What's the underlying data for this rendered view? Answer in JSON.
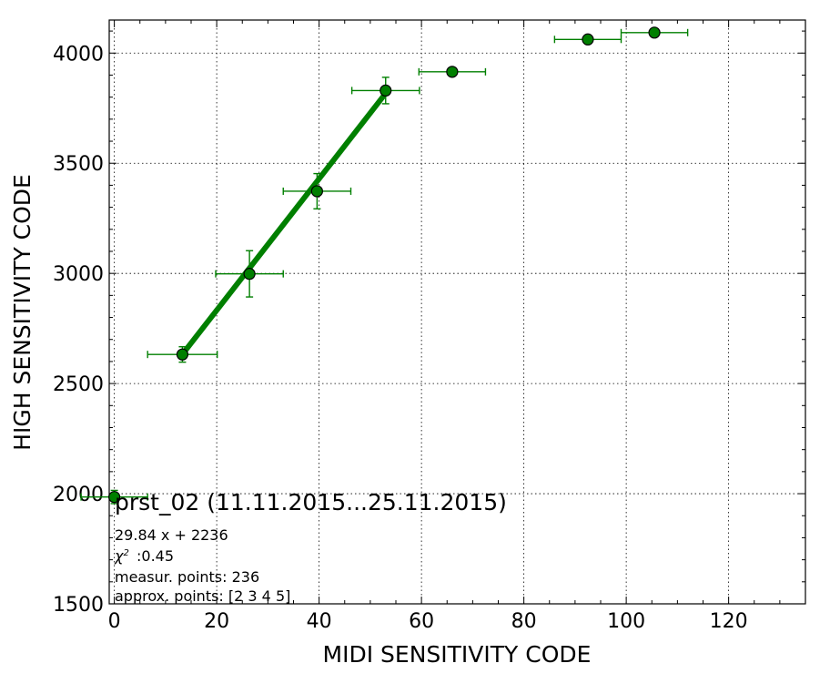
{
  "chart_data": {
    "type": "scatter",
    "title": "",
    "xlabel": "MIDI SENSITIVITY CODE",
    "ylabel": "HIGH SENSITIVITY CODE",
    "xlim": [
      -1,
      135
    ],
    "ylim": [
      1500,
      4150
    ],
    "xticks": [
      0,
      20,
      40,
      60,
      80,
      100,
      120
    ],
    "yticks": [
      1500,
      2000,
      2500,
      3000,
      3500,
      4000
    ],
    "grid": true,
    "colors": {
      "marker": "#007f00",
      "fit_line": "#007f00",
      "errorbar": "#007f00"
    },
    "points": [
      {
        "x": 0,
        "y": 1985,
        "xerr": 6.5,
        "yerr": 30
      },
      {
        "x": 13.3,
        "y": 2632,
        "xerr": 6.8,
        "yerr": 35
      },
      {
        "x": 26.4,
        "y": 2998,
        "xerr": 6.6,
        "yerr": 105
      },
      {
        "x": 39.6,
        "y": 3373,
        "xerr": 6.6,
        "yerr": 80
      },
      {
        "x": 53,
        "y": 3830,
        "xerr": 6.6,
        "yerr": 60
      },
      {
        "x": 66,
        "y": 3915,
        "xerr": 6.5,
        "yerr": 0
      },
      {
        "x": 92.5,
        "y": 4062,
        "xerr": 6.5,
        "yerr": 0
      },
      {
        "x": 105.5,
        "y": 4093,
        "xerr": 6.5,
        "yerr": 0
      }
    ],
    "fit": {
      "slope": 29.84,
      "intercept": 2236,
      "x_range": [
        13.3,
        53
      ]
    },
    "annotation": {
      "title": "prst_02 (11.11.2015...25.11.2015)",
      "equation": "29.84 x + 2236",
      "chi2": ":0.45",
      "measur_points": "measur. points: 236",
      "approx_points": "approx. points: [2 3 4 5]"
    }
  }
}
